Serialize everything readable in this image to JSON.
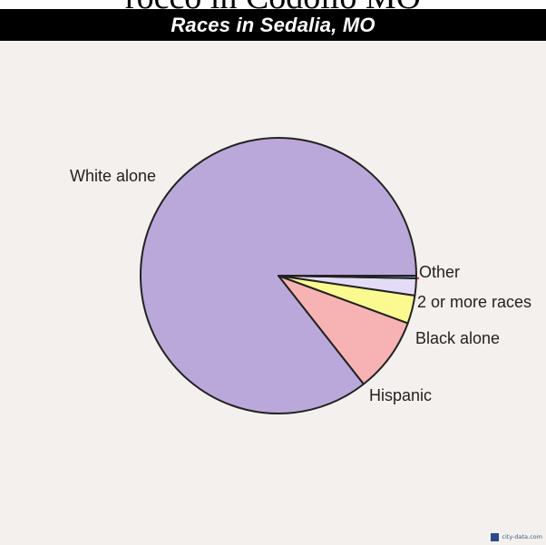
{
  "crop_text": "rocco in Codolio MO",
  "chart_data": {
    "type": "pie",
    "title": "Races in Sedalia, MO",
    "slices": [
      {
        "label": "White alone",
        "value": 85.6,
        "color": "#bba8da"
      },
      {
        "label": "Hispanic",
        "value": 8.8,
        "color": "#f7b3b3"
      },
      {
        "label": "Black alone",
        "value": 3.3,
        "color": "#fafa90"
      },
      {
        "label": "2 or more races",
        "value": 2.0,
        "color": "#e4dcf6"
      },
      {
        "label": "Other",
        "value": 0.3,
        "color": "#8a9ce6"
      }
    ],
    "start_angle_deg": 0,
    "direction": "counterclockwise_from_right",
    "stroke_color": "#222222"
  },
  "watermark": {
    "text": "city-data.com"
  }
}
